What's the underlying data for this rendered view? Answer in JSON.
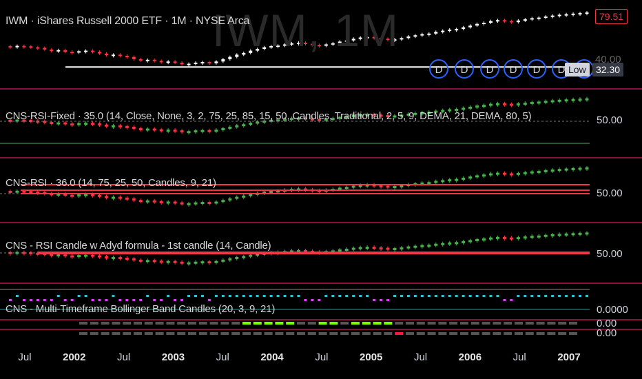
{
  "header": {
    "title": "IWM · iShares Russell 2000 ETF · 1M · NYSE Arca",
    "watermark": "IWM, 1M"
  },
  "price_tags": {
    "last": "79.51",
    "low_label": "Low",
    "low_value": "32.30",
    "hidden_tick": "40.00"
  },
  "panes": [
    {
      "label": "CNS-RSI-Fixed · 35.0 (14, Close, None, 3, 2, 75, 25, 85, 15, 50, Candles, Traditional, 2, 5, 9, DEMA, 21, DEMA, 80, 5)",
      "axis": "50.00"
    },
    {
      "label": "CNS-RSI · 36.0 (14, 75, 25, 50, Candles, 9, 21)",
      "axis": "50.00"
    },
    {
      "label": "CNS - RSI Candle w Adyd formula - 1st candle (14, Candle)",
      "axis": "50.00"
    },
    {
      "label": "CNS - Multi-Timeframe Bollinger Band Candles (20, 3, 9, 21)",
      "axis": "0.0000"
    }
  ],
  "bottom_axis": [
    "0.00",
    "0.00"
  ],
  "dividend_marker": "D",
  "colors": {
    "up": "#ffffff",
    "down": "#f23645",
    "rsi_up": "#4caf50",
    "rsi_down": "#f23645",
    "divider": "#d81b60",
    "dividend": "#2962ff",
    "bb_up": "#26c6da",
    "bb_down": "#e040fb"
  },
  "chart_data": {
    "type": "candlestick",
    "x_ticks": [
      {
        "label": "Jul",
        "year": false
      },
      {
        "label": "2002",
        "year": true
      },
      {
        "label": "Jul",
        "year": false
      },
      {
        "label": "2003",
        "year": true
      },
      {
        "label": "Jul",
        "year": false
      },
      {
        "label": "2004",
        "year": true
      },
      {
        "label": "Jul",
        "year": false
      },
      {
        "label": "2005",
        "year": true
      },
      {
        "label": "Jul",
        "year": false
      },
      {
        "label": "2006",
        "year": true
      },
      {
        "label": "Jul",
        "year": false
      },
      {
        "label": "2007",
        "year": true
      }
    ],
    "series": [
      {
        "values": [
          50.0,
          49.5,
          50.2,
          49.8,
          49.0,
          48.5,
          47.0,
          45.5,
          46.5,
          45.0,
          44.8,
          45.5,
          46.0,
          45.0,
          43.5,
          42.0,
          42.5,
          41.5,
          40.5,
          38.5,
          37.5,
          38.0,
          37.0,
          36.0,
          36.5,
          35.5,
          34.0,
          34.5,
          35.5,
          36.0,
          35.0,
          36.5,
          38.5,
          40.5,
          42.5,
          44.0,
          46.0,
          47.5,
          49.0,
          50.0,
          50.5,
          51.5,
          52.5,
          53.0,
          52.0,
          51.0,
          50.5,
          51.5,
          52.5,
          54.0,
          55.0,
          56.5,
          57.5,
          58.0,
          57.0,
          56.5,
          55.5,
          56.0,
          57.0,
          58.5,
          59.5,
          60.5,
          61.0,
          62.5,
          63.5,
          64.5,
          65.0,
          66.5,
          68.0,
          69.5,
          70.5,
          72.0,
          72.8,
          72.0,
          71.0,
          72.5,
          73.5,
          74.5,
          75.0,
          76.0,
          76.8,
          77.5,
          78.0,
          78.5,
          79.0,
          79.51
        ]
      }
    ]
  }
}
